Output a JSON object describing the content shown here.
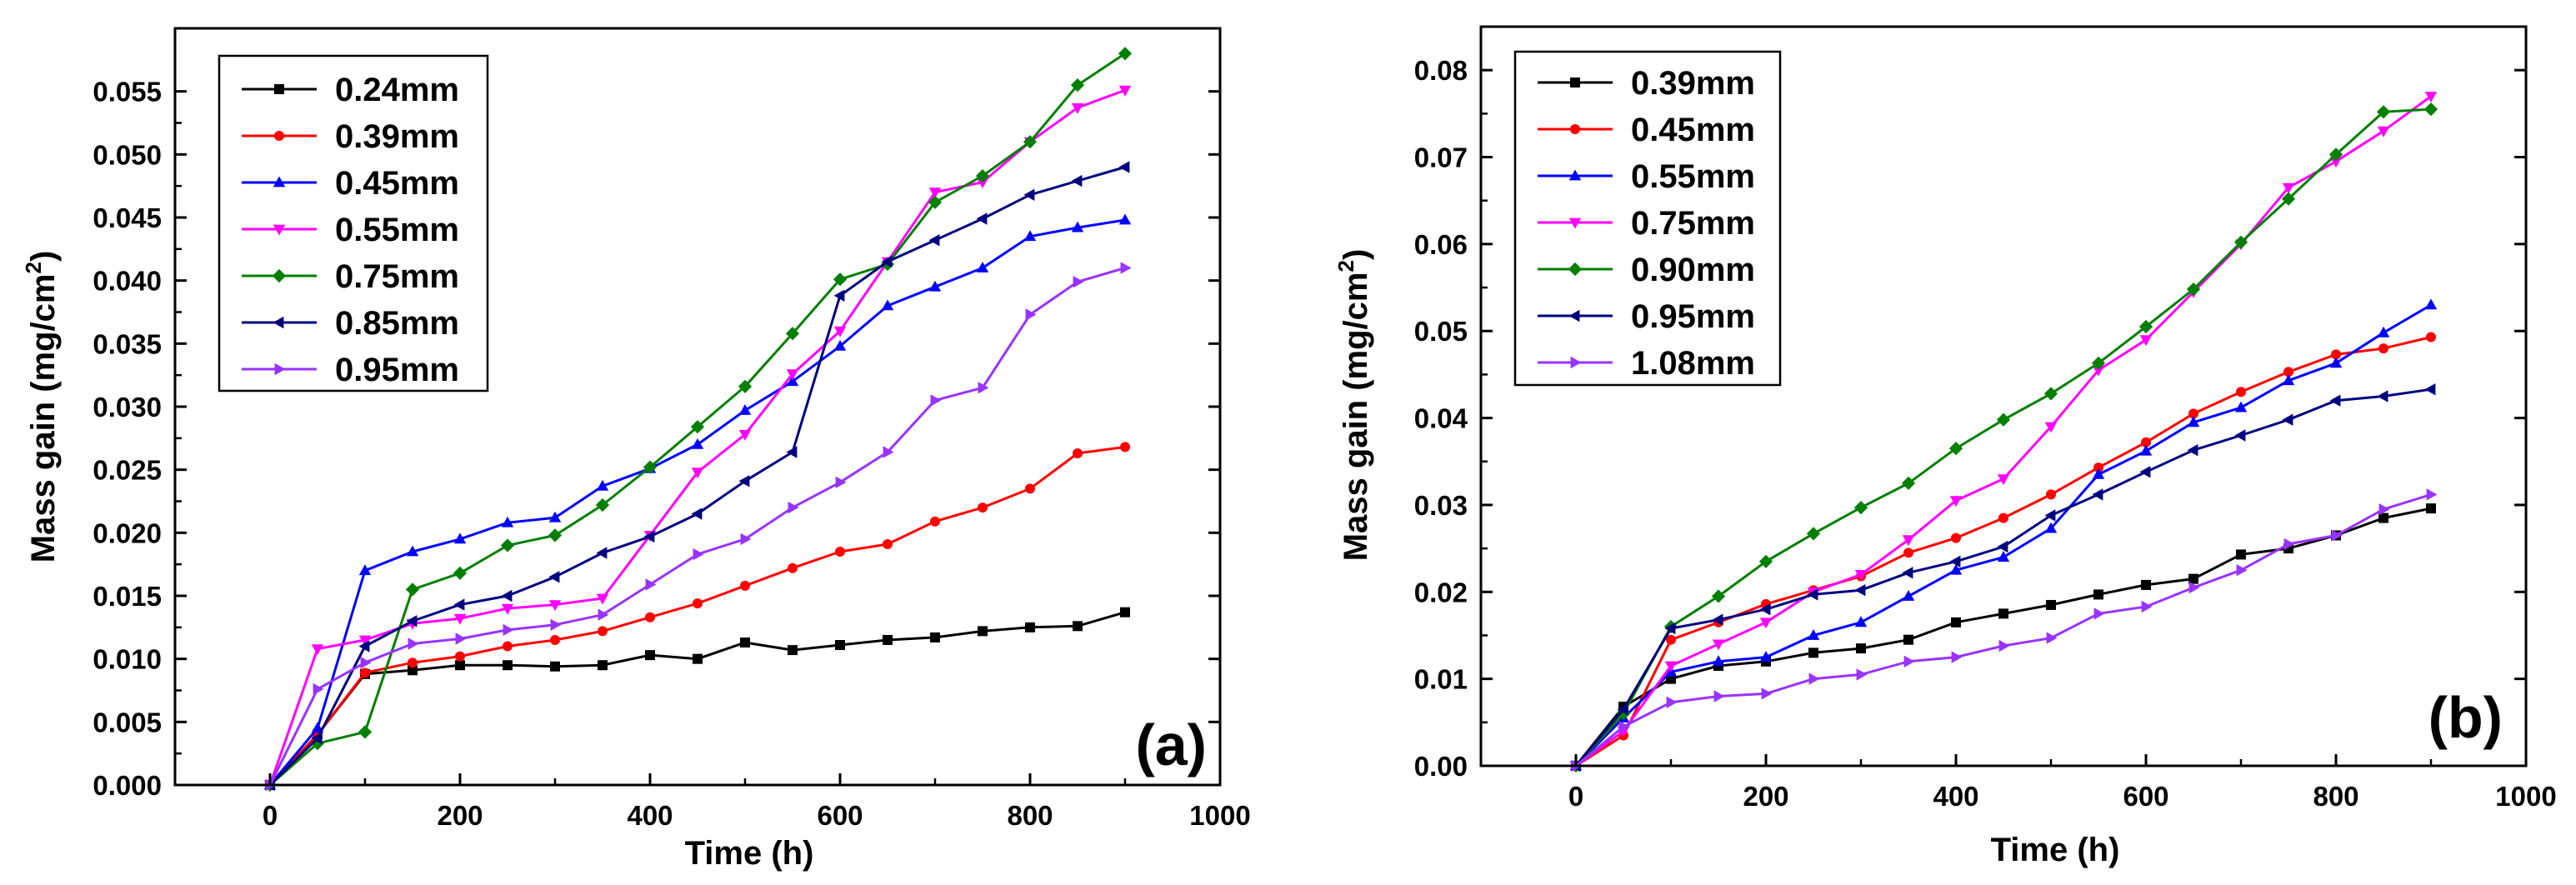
{
  "chart_data": [
    {
      "type": "line",
      "panel_label": "(a)",
      "xlabel": "Time (h)",
      "ylabel": {
        "main": "Mass gain (mg/cm",
        "sup": "2",
        "end": ")"
      },
      "xlim": [
        -100,
        1000
      ],
      "ylim": [
        0,
        0.06
      ],
      "xticks": [
        0,
        200,
        400,
        600,
        800,
        1000
      ],
      "xtick_labels": [
        "0",
        "200",
        "400",
        "600",
        "800",
        "1000"
      ],
      "yticks": [
        0,
        0.005,
        0.01,
        0.015,
        0.02,
        0.025,
        0.03,
        0.035,
        0.04,
        0.045,
        0.05,
        0.055
      ],
      "ytick_labels": [
        "0.000",
        "0.005",
        "0.010",
        "0.015",
        "0.020",
        "0.025",
        "0.030",
        "0.035",
        "0.040",
        "0.045",
        "0.050",
        "0.055"
      ],
      "x": [
        0,
        50,
        100,
        150,
        200,
        250,
        300,
        350,
        400,
        450,
        500,
        550,
        600,
        650,
        700,
        750,
        800,
        850,
        900
      ],
      "series": [
        {
          "name": "0.24mm",
          "color": "#000000",
          "marker": "square",
          "values": [
            0,
            0.004,
            0.0088,
            0.0091,
            0.0095,
            0.0095,
            0.0094,
            0.0095,
            0.0103,
            0.01,
            0.0113,
            0.0107,
            0.0111,
            0.0115,
            0.0117,
            0.0122,
            0.0125,
            0.0126,
            0.0137
          ]
        },
        {
          "name": "0.39mm",
          "color": "#ff0000",
          "marker": "circle",
          "values": [
            0,
            0.004,
            0.0089,
            0.0097,
            0.0102,
            0.011,
            0.0115,
            0.0122,
            0.0133,
            0.0144,
            0.0158,
            0.0172,
            0.0185,
            0.0191,
            0.0209,
            0.022,
            0.0235,
            0.0263,
            0.0268
          ]
        },
        {
          "name": "0.45mm",
          "color": "#0000ff",
          "marker": "triangle-up",
          "values": [
            0,
            0.0045,
            0.017,
            0.0185,
            0.0195,
            0.0208,
            0.0212,
            0.0237,
            0.0251,
            0.027,
            0.0297,
            0.032,
            0.0348,
            0.038,
            0.0395,
            0.041,
            0.0435,
            0.0442,
            0.0448
          ]
        },
        {
          "name": "0.55mm",
          "color": "#ff00ff",
          "marker": "triangle-down",
          "values": [
            0,
            0.0108,
            0.0115,
            0.0128,
            0.0132,
            0.014,
            0.0143,
            0.0148,
            0.0198,
            0.0248,
            0.0278,
            0.0326,
            0.036,
            0.0415,
            0.047,
            0.0478,
            0.051,
            0.0537,
            0.0551
          ]
        },
        {
          "name": "0.75mm",
          "color": "#008000",
          "marker": "diamond",
          "values": [
            0,
            0.0033,
            0.0042,
            0.0155,
            0.0168,
            0.019,
            0.0198,
            0.0222,
            0.0252,
            0.0284,
            0.0316,
            0.0358,
            0.0401,
            0.0413,
            0.0462,
            0.0483,
            0.051,
            0.0555,
            0.058
          ]
        },
        {
          "name": "0.85mm",
          "color": "#000080",
          "marker": "triangle-left",
          "values": [
            0,
            0.0037,
            0.011,
            0.013,
            0.0143,
            0.015,
            0.0165,
            0.0184,
            0.0197,
            0.0215,
            0.0241,
            0.0264,
            0.0388,
            0.0415,
            0.0432,
            0.0449,
            0.0468,
            0.0479,
            0.049
          ]
        },
        {
          "name": "0.95mm",
          "color": "#9933ff",
          "marker": "triangle-right",
          "values": [
            0,
            0.0076,
            0.0097,
            0.0112,
            0.0116,
            0.0123,
            0.0127,
            0.0135,
            0.0159,
            0.0183,
            0.0195,
            0.022,
            0.024,
            0.0264,
            0.0305,
            0.0315,
            0.0373,
            0.0399,
            0.041
          ]
        }
      ]
    },
    {
      "type": "line",
      "panel_label": "(b)",
      "xlabel": "Time (h)",
      "ylabel": {
        "main": "Mass gain (mg/cm",
        "sup": "2",
        "end": ")"
      },
      "xlim": [
        -100,
        1000
      ],
      "ylim": [
        0,
        0.085
      ],
      "xticks": [
        0,
        200,
        400,
        600,
        800,
        1000
      ],
      "xtick_labels": [
        "0",
        "200",
        "400",
        "600",
        "800",
        "1000"
      ],
      "yticks": [
        0,
        0.01,
        0.02,
        0.03,
        0.04,
        0.05,
        0.06,
        0.07,
        0.08
      ],
      "ytick_labels": [
        "0.00",
        "0.01",
        "0.02",
        "0.03",
        "0.04",
        "0.05",
        "0.06",
        "0.07",
        "0.08"
      ],
      "x": [
        0,
        50,
        100,
        150,
        200,
        250,
        300,
        350,
        400,
        450,
        500,
        550,
        600,
        650,
        700,
        750,
        800,
        850,
        900
      ],
      "series": [
        {
          "name": "0.39mm",
          "color": "#000000",
          "marker": "square",
          "values": [
            0,
            0.0068,
            0.01,
            0.0115,
            0.012,
            0.013,
            0.0135,
            0.0145,
            0.0165,
            0.0175,
            0.0185,
            0.0197,
            0.0208,
            0.0215,
            0.0243,
            0.025,
            0.0265,
            0.0285,
            0.0296
          ]
        },
        {
          "name": "0.45mm",
          "color": "#ff0000",
          "marker": "circle",
          "values": [
            0,
            0.0035,
            0.0145,
            0.0165,
            0.0186,
            0.0202,
            0.0218,
            0.0245,
            0.0262,
            0.0285,
            0.0312,
            0.0343,
            0.0372,
            0.0405,
            0.043,
            0.0453,
            0.0473,
            0.048,
            0.0493
          ]
        },
        {
          "name": "0.55mm",
          "color": "#0000ff",
          "marker": "triangle-up",
          "values": [
            0,
            0.0055,
            0.0108,
            0.012,
            0.0125,
            0.015,
            0.0165,
            0.0195,
            0.0225,
            0.024,
            0.0273,
            0.0335,
            0.0362,
            0.0395,
            0.0412,
            0.0443,
            0.0463,
            0.0498,
            0.053
          ]
        },
        {
          "name": "0.75mm",
          "color": "#ff00ff",
          "marker": "triangle-down",
          "values": [
            0,
            0.004,
            0.0115,
            0.014,
            0.0165,
            0.02,
            0.022,
            0.026,
            0.0305,
            0.033,
            0.039,
            0.0455,
            0.049,
            0.0545,
            0.06,
            0.0665,
            0.0695,
            0.073,
            0.077
          ]
        },
        {
          "name": "0.90mm",
          "color": "#008000",
          "marker": "diamond",
          "values": [
            0,
            0.006,
            0.016,
            0.0195,
            0.0235,
            0.0267,
            0.0297,
            0.0325,
            0.0365,
            0.0398,
            0.0428,
            0.0463,
            0.0505,
            0.0548,
            0.0602,
            0.0652,
            0.0703,
            0.0752,
            0.0755
          ]
        },
        {
          "name": "0.95mm",
          "color": "#000080",
          "marker": "triangle-left",
          "values": [
            0,
            0.0065,
            0.0158,
            0.0168,
            0.018,
            0.0197,
            0.0202,
            0.0222,
            0.0235,
            0.0252,
            0.0288,
            0.0312,
            0.0338,
            0.0363,
            0.038,
            0.0398,
            0.042,
            0.0425,
            0.0433
          ]
        },
        {
          "name": "1.08mm",
          "color": "#9933ff",
          "marker": "triangle-right",
          "values": [
            0,
            0.0045,
            0.0073,
            0.008,
            0.0083,
            0.01,
            0.0105,
            0.012,
            0.0125,
            0.0138,
            0.0147,
            0.0175,
            0.0183,
            0.0205,
            0.0225,
            0.0255,
            0.0265,
            0.0295,
            0.0312
          ]
        }
      ]
    }
  ]
}
